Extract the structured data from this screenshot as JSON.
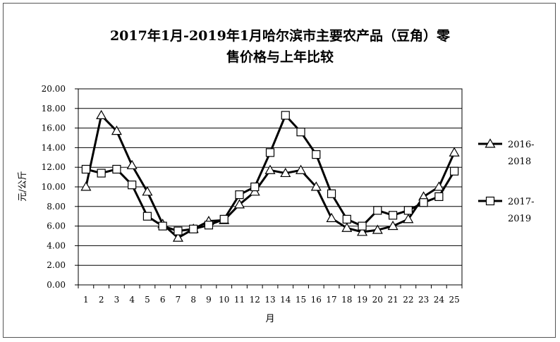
{
  "chart_data": {
    "type": "line",
    "title_line1": "2017年1月-2019年1月哈尔滨市主要农产品（豆角）零",
    "title_line2": "售价格与上年比较",
    "xlabel": "月",
    "ylabel": "元/公斤",
    "categories": [
      "1",
      "2",
      "3",
      "4",
      "5",
      "6",
      "7",
      "8",
      "9",
      "10",
      "11",
      "12",
      "13",
      "14",
      "15",
      "16",
      "17",
      "18",
      "19",
      "20",
      "21",
      "22",
      "23",
      "24",
      "25"
    ],
    "ylim": [
      0,
      20
    ],
    "yticks": [
      "0.00",
      "2.00",
      "4.00",
      "6.00",
      "8.00",
      "10.00",
      "12.00",
      "14.00",
      "16.00",
      "18.00",
      "20.00"
    ],
    "grid": true,
    "legend_position": "right",
    "series": [
      {
        "name": "2016-2018",
        "legend_lines": [
          "2016-",
          "2018"
        ],
        "marker": "triangle",
        "values": [
          10.0,
          17.3,
          15.7,
          12.2,
          9.5,
          6.2,
          4.8,
          5.7,
          6.5,
          6.6,
          8.2,
          9.5,
          11.7,
          11.4,
          11.7,
          10.0,
          6.8,
          5.8,
          5.4,
          5.6,
          6.0,
          6.7,
          9.0,
          10.0,
          13.5
        ]
      },
      {
        "name": "2017-2019",
        "legend_lines": [
          "2017-",
          "2019"
        ],
        "marker": "square",
        "values": [
          11.8,
          11.4,
          11.8,
          10.2,
          7.0,
          6.0,
          5.5,
          5.7,
          6.1,
          6.7,
          9.2,
          10.0,
          13.5,
          17.3,
          15.6,
          13.3,
          9.3,
          6.7,
          6.0,
          7.6,
          7.1,
          7.6,
          8.4,
          9.0,
          11.6
        ]
      }
    ]
  }
}
